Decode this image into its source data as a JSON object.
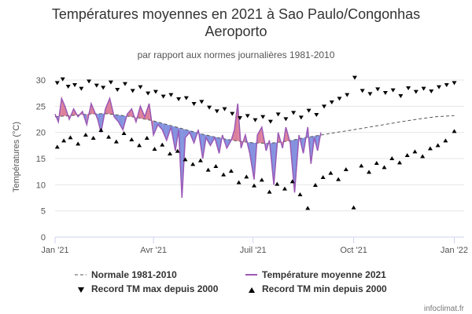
{
  "chart_data": {
    "type": "line",
    "title_line1": "Températures moyennes en 2021 à Sao Paulo/Congonhas",
    "title_line2": "Aeroporto",
    "subtitle": "par rapport aux normes journalières 1981-2010",
    "ylabel": "Températures (°C)",
    "xlabel": "",
    "ylim": [
      0,
      30
    ],
    "yticks": [
      0,
      5,
      10,
      15,
      20,
      25,
      30
    ],
    "x_ticks": [
      {
        "date": "2021-01-01",
        "label": "Jan '21"
      },
      {
        "date": "2021-04-01",
        "label": "Avr '21"
      },
      {
        "date": "2021-07-01",
        "label": "Juil '21"
      },
      {
        "date": "2021-10-01",
        "label": "Oct '21"
      },
      {
        "date": "2022-01-01",
        "label": "Jan '22"
      }
    ],
    "xlim": [
      "2021-01-01",
      "2022-01-10"
    ],
    "grid": true,
    "legend_position": "bottom",
    "colors": {
      "normal": "#555555",
      "mean": "#9b59b6",
      "above_fill": "#d66a8a",
      "below_fill": "#6f7fd9",
      "record_marker": "#000000"
    },
    "series": [
      {
        "name": "Normale 1981-2010",
        "style": "dashed",
        "points": [
          [
            "2021-01-01",
            23.0
          ],
          [
            "2021-01-15",
            23.2
          ],
          [
            "2021-02-01",
            23.5
          ],
          [
            "2021-02-15",
            23.6
          ],
          [
            "2021-03-01",
            23.3
          ],
          [
            "2021-03-15",
            22.9
          ],
          [
            "2021-04-01",
            22.2
          ],
          [
            "2021-04-15",
            21.4
          ],
          [
            "2021-05-01",
            20.5
          ],
          [
            "2021-05-15",
            19.7
          ],
          [
            "2021-06-01",
            18.9
          ],
          [
            "2021-06-15",
            18.4
          ],
          [
            "2021-07-01",
            18.0
          ],
          [
            "2021-07-15",
            17.9
          ],
          [
            "2021-08-01",
            18.3
          ],
          [
            "2021-08-15",
            18.9
          ],
          [
            "2021-09-01",
            19.5
          ],
          [
            "2021-09-15",
            20.0
          ],
          [
            "2021-10-01",
            20.5
          ],
          [
            "2021-10-15",
            21.0
          ],
          [
            "2021-11-01",
            21.6
          ],
          [
            "2021-11-15",
            22.1
          ],
          [
            "2021-12-01",
            22.6
          ],
          [
            "2021-12-15",
            23.0
          ],
          [
            "2022-01-01",
            23.2
          ]
        ]
      },
      {
        "name": "Température moyenne 2021",
        "style": "solid",
        "points": [
          [
            "2021-01-01",
            23.5
          ],
          [
            "2021-01-04",
            22.0
          ],
          [
            "2021-01-07",
            26.5
          ],
          [
            "2021-01-10",
            25.0
          ],
          [
            "2021-01-14",
            22.5
          ],
          [
            "2021-01-18",
            24.5
          ],
          [
            "2021-01-22",
            23.0
          ],
          [
            "2021-01-26",
            24.0
          ],
          [
            "2021-01-30",
            21.5
          ],
          [
            "2021-02-03",
            25.5
          ],
          [
            "2021-02-06",
            24.0
          ],
          [
            "2021-02-09",
            22.5
          ],
          [
            "2021-02-12",
            20.0
          ],
          [
            "2021-02-16",
            24.5
          ],
          [
            "2021-02-20",
            26.5
          ],
          [
            "2021-02-24",
            23.0
          ],
          [
            "2021-02-28",
            22.0
          ],
          [
            "2021-03-04",
            20.5
          ],
          [
            "2021-03-08",
            23.5
          ],
          [
            "2021-03-12",
            24.5
          ],
          [
            "2021-03-16",
            22.0
          ],
          [
            "2021-03-20",
            25.0
          ],
          [
            "2021-03-24",
            23.0
          ],
          [
            "2021-03-28",
            25.5
          ],
          [
            "2021-04-01",
            19.5
          ],
          [
            "2021-04-05",
            21.5
          ],
          [
            "2021-04-09",
            20.5
          ],
          [
            "2021-04-13",
            18.5
          ],
          [
            "2021-04-17",
            21.0
          ],
          [
            "2021-04-21",
            16.5
          ],
          [
            "2021-04-24",
            20.5
          ],
          [
            "2021-04-27",
            7.5
          ],
          [
            "2021-04-30",
            19.0
          ],
          [
            "2021-05-04",
            20.0
          ],
          [
            "2021-05-08",
            18.0
          ],
          [
            "2021-05-12",
            20.5
          ],
          [
            "2021-05-16",
            15.0
          ],
          [
            "2021-05-19",
            19.0
          ],
          [
            "2021-05-23",
            17.5
          ],
          [
            "2021-05-27",
            19.0
          ],
          [
            "2021-05-31",
            16.0
          ],
          [
            "2021-06-03",
            19.5
          ],
          [
            "2021-06-07",
            17.0
          ],
          [
            "2021-06-11",
            18.5
          ],
          [
            "2021-06-14",
            20.5
          ],
          [
            "2021-06-17",
            25.5
          ],
          [
            "2021-06-20",
            17.0
          ],
          [
            "2021-06-24",
            19.5
          ],
          [
            "2021-06-28",
            16.0
          ],
          [
            "2021-07-02",
            11.0
          ],
          [
            "2021-07-05",
            19.5
          ],
          [
            "2021-07-09",
            21.0
          ],
          [
            "2021-07-13",
            16.5
          ],
          [
            "2021-07-16",
            18.5
          ],
          [
            "2021-07-20",
            10.0
          ],
          [
            "2021-07-24",
            20.0
          ],
          [
            "2021-07-28",
            17.0
          ],
          [
            "2021-07-31",
            21.0
          ],
          [
            "2021-08-04",
            18.0
          ],
          [
            "2021-08-08",
            8.5
          ],
          [
            "2021-08-12",
            19.5
          ],
          [
            "2021-08-16",
            16.0
          ],
          [
            "2021-08-20",
            21.0
          ],
          [
            "2021-08-23",
            14.0
          ],
          [
            "2021-08-26",
            19.0
          ],
          [
            "2021-08-29",
            16.5
          ],
          [
            "2021-09-01",
            20.0
          ]
        ]
      }
    ],
    "record_max_label": "Record TM max depuis 2000",
    "record_min_label": "Record TM min depuis 2000",
    "record_max_points": [
      [
        "2021-01-03",
        29.5
      ],
      [
        "2021-01-08",
        30.2
      ],
      [
        "2021-01-13",
        28.8
      ],
      [
        "2021-01-19",
        29.1
      ],
      [
        "2021-01-25",
        28.4
      ],
      [
        "2021-02-01",
        29.8
      ],
      [
        "2021-02-08",
        29.0
      ],
      [
        "2021-02-14",
        28.6
      ],
      [
        "2021-02-21",
        29.6
      ],
      [
        "2021-02-27",
        28.2
      ],
      [
        "2021-03-06",
        29.3
      ],
      [
        "2021-03-13",
        28.0
      ],
      [
        "2021-03-20",
        28.7
      ],
      [
        "2021-03-27",
        27.5
      ],
      [
        "2021-04-03",
        27.8
      ],
      [
        "2021-04-10",
        26.9
      ],
      [
        "2021-04-17",
        27.2
      ],
      [
        "2021-04-24",
        26.4
      ],
      [
        "2021-05-01",
        26.6
      ],
      [
        "2021-05-08",
        25.5
      ],
      [
        "2021-05-15",
        25.9
      ],
      [
        "2021-05-22",
        24.8
      ],
      [
        "2021-05-29",
        24.1
      ],
      [
        "2021-06-05",
        24.5
      ],
      [
        "2021-06-12",
        23.6
      ],
      [
        "2021-06-19",
        22.8
      ],
      [
        "2021-06-26",
        23.2
      ],
      [
        "2021-07-03",
        22.4
      ],
      [
        "2021-07-10",
        23.0
      ],
      [
        "2021-07-17",
        22.1
      ],
      [
        "2021-07-24",
        23.5
      ],
      [
        "2021-07-31",
        22.6
      ],
      [
        "2021-08-07",
        23.8
      ],
      [
        "2021-08-14",
        22.9
      ],
      [
        "2021-08-21",
        24.2
      ],
      [
        "2021-08-28",
        23.4
      ],
      [
        "2021-09-04",
        25.0
      ],
      [
        "2021-09-11",
        25.8
      ],
      [
        "2021-09-18",
        26.5
      ],
      [
        "2021-09-25",
        27.2
      ],
      [
        "2021-10-02",
        30.5
      ],
      [
        "2021-10-09",
        28.0
      ],
      [
        "2021-10-16",
        27.4
      ],
      [
        "2021-10-23",
        28.3
      ],
      [
        "2021-10-30",
        27.6
      ],
      [
        "2021-11-06",
        28.1
      ],
      [
        "2021-11-13",
        27.0
      ],
      [
        "2021-11-20",
        28.5
      ],
      [
        "2021-11-27",
        27.8
      ],
      [
        "2021-12-04",
        28.4
      ],
      [
        "2021-12-11",
        27.9
      ],
      [
        "2021-12-18",
        28.7
      ],
      [
        "2021-12-25",
        29.1
      ],
      [
        "2022-01-01",
        29.5
      ]
    ],
    "record_min_points": [
      [
        "2021-01-03",
        17.2
      ],
      [
        "2021-01-09",
        18.4
      ],
      [
        "2021-01-15",
        19.0
      ],
      [
        "2021-01-22",
        17.8
      ],
      [
        "2021-01-29",
        19.5
      ],
      [
        "2021-02-05",
        18.9
      ],
      [
        "2021-02-12",
        20.4
      ],
      [
        "2021-02-19",
        19.1
      ],
      [
        "2021-02-26",
        18.2
      ],
      [
        "2021-03-05",
        19.8
      ],
      [
        "2021-03-12",
        18.6
      ],
      [
        "2021-03-19",
        17.5
      ],
      [
        "2021-03-26",
        18.9
      ],
      [
        "2021-04-02",
        16.8
      ],
      [
        "2021-04-09",
        17.6
      ],
      [
        "2021-04-16",
        15.9
      ],
      [
        "2021-04-23",
        16.4
      ],
      [
        "2021-04-30",
        14.8
      ],
      [
        "2021-05-07",
        13.9
      ],
      [
        "2021-05-14",
        14.6
      ],
      [
        "2021-05-21",
        12.8
      ],
      [
        "2021-05-28",
        13.5
      ],
      [
        "2021-06-04",
        11.9
      ],
      [
        "2021-06-11",
        12.6
      ],
      [
        "2021-06-18",
        10.4
      ],
      [
        "2021-06-25",
        11.5
      ],
      [
        "2021-07-02",
        9.8
      ],
      [
        "2021-07-09",
        10.9
      ],
      [
        "2021-07-16",
        8.6
      ],
      [
        "2021-07-23",
        10.1
      ],
      [
        "2021-07-30",
        9.2
      ],
      [
        "2021-08-06",
        10.6
      ],
      [
        "2021-08-13",
        8.1
      ],
      [
        "2021-08-20",
        5.5
      ],
      [
        "2021-08-27",
        9.9
      ],
      [
        "2021-09-03",
        11.4
      ],
      [
        "2021-09-10",
        12.2
      ],
      [
        "2021-09-17",
        11.0
      ],
      [
        "2021-09-24",
        12.9
      ],
      [
        "2021-10-01",
        5.6
      ],
      [
        "2021-10-08",
        13.6
      ],
      [
        "2021-10-15",
        12.4
      ],
      [
        "2021-10-22",
        14.1
      ],
      [
        "2021-10-29",
        13.3
      ],
      [
        "2021-11-05",
        15.0
      ],
      [
        "2021-11-12",
        14.2
      ],
      [
        "2021-11-19",
        15.6
      ],
      [
        "2021-11-26",
        16.3
      ],
      [
        "2021-12-03",
        15.4
      ],
      [
        "2021-12-10",
        16.9
      ],
      [
        "2021-12-17",
        17.5
      ],
      [
        "2021-12-24",
        18.4
      ],
      [
        "2022-01-01",
        20.2
      ]
    ],
    "credit": "infoclimat.fr"
  }
}
